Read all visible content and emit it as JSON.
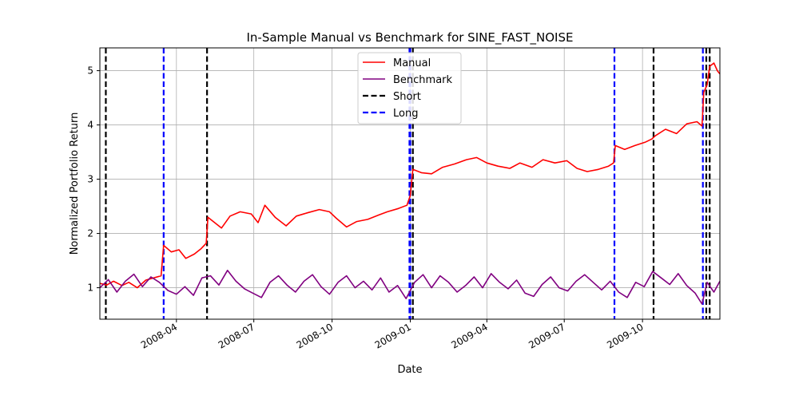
{
  "chart_data": {
    "type": "line",
    "title": "In-Sample Manual vs Benchmark for SINE_FAST_NOISE",
    "xlabel": "Date",
    "ylabel": "Normalized Portfolio Return",
    "xlim": [
      "2008-01-02",
      "2009-12-31"
    ],
    "ylim": [
      0.42,
      5.42
    ],
    "x_ticks": [
      "2008-04",
      "2008-07",
      "2008-10",
      "2009-01",
      "2009-04",
      "2009-07",
      "2009-10"
    ],
    "y_ticks": [
      1,
      2,
      3,
      4,
      5
    ],
    "grid": true,
    "legend_position": "top-center",
    "series": [
      {
        "name": "Manual",
        "color": "#ff0000",
        "style": "solid",
        "points": [
          [
            "2008-01-02",
            1.08
          ],
          [
            "2008-01-10",
            1.05
          ],
          [
            "2008-01-18",
            1.12
          ],
          [
            "2008-01-28",
            1.04
          ],
          [
            "2008-02-05",
            1.1
          ],
          [
            "2008-02-15",
            1.0
          ],
          [
            "2008-02-25",
            1.14
          ],
          [
            "2008-03-05",
            1.18
          ],
          [
            "2008-03-14",
            1.22
          ],
          [
            "2008-03-17",
            1.78
          ],
          [
            "2008-03-26",
            1.66
          ],
          [
            "2008-04-04",
            1.7
          ],
          [
            "2008-04-12",
            1.54
          ],
          [
            "2008-04-22",
            1.62
          ],
          [
            "2008-04-30",
            1.72
          ],
          [
            "2008-05-06",
            1.82
          ],
          [
            "2008-05-08",
            2.3
          ],
          [
            "2008-05-16",
            2.2
          ],
          [
            "2008-05-24",
            2.1
          ],
          [
            "2008-06-03",
            2.32
          ],
          [
            "2008-06-15",
            2.4
          ],
          [
            "2008-06-28",
            2.36
          ],
          [
            "2008-07-06",
            2.2
          ],
          [
            "2008-07-14",
            2.52
          ],
          [
            "2008-07-26",
            2.3
          ],
          [
            "2008-08-08",
            2.14
          ],
          [
            "2008-08-20",
            2.32
          ],
          [
            "2008-09-02",
            2.38
          ],
          [
            "2008-09-16",
            2.44
          ],
          [
            "2008-09-28",
            2.4
          ],
          [
            "2008-10-06",
            2.28
          ],
          [
            "2008-10-18",
            2.12
          ],
          [
            "2008-10-30",
            2.22
          ],
          [
            "2008-11-12",
            2.26
          ],
          [
            "2008-11-25",
            2.34
          ],
          [
            "2008-12-05",
            2.4
          ],
          [
            "2008-12-18",
            2.46
          ],
          [
            "2008-12-28",
            2.52
          ],
          [
            "2009-01-01",
            2.7
          ],
          [
            "2009-01-04",
            3.18
          ],
          [
            "2009-01-14",
            3.12
          ],
          [
            "2009-01-26",
            3.1
          ],
          [
            "2009-02-08",
            3.22
          ],
          [
            "2009-02-22",
            3.28
          ],
          [
            "2009-03-08",
            3.36
          ],
          [
            "2009-03-20",
            3.4
          ],
          [
            "2009-04-01",
            3.3
          ],
          [
            "2009-04-14",
            3.24
          ],
          [
            "2009-04-28",
            3.2
          ],
          [
            "2009-05-10",
            3.3
          ],
          [
            "2009-05-24",
            3.22
          ],
          [
            "2009-06-06",
            3.36
          ],
          [
            "2009-06-20",
            3.3
          ],
          [
            "2009-07-04",
            3.34
          ],
          [
            "2009-07-16",
            3.2
          ],
          [
            "2009-07-28",
            3.14
          ],
          [
            "2009-08-10",
            3.18
          ],
          [
            "2009-08-22",
            3.24
          ],
          [
            "2009-08-28",
            3.3
          ],
          [
            "2009-08-30",
            3.62
          ],
          [
            "2009-09-10",
            3.55
          ],
          [
            "2009-09-22",
            3.62
          ],
          [
            "2009-10-04",
            3.68
          ],
          [
            "2009-10-12",
            3.74
          ],
          [
            "2009-10-16",
            3.8
          ],
          [
            "2009-10-28",
            3.92
          ],
          [
            "2009-11-10",
            3.84
          ],
          [
            "2009-11-22",
            4.02
          ],
          [
            "2009-12-04",
            4.06
          ],
          [
            "2009-12-10",
            3.98
          ],
          [
            "2009-12-12",
            4.6
          ],
          [
            "2009-12-16",
            4.74
          ],
          [
            "2009-12-19",
            5.08
          ],
          [
            "2009-12-24",
            5.14
          ],
          [
            "2009-12-28",
            5.0
          ],
          [
            "2009-12-31",
            4.94
          ]
        ]
      },
      {
        "name": "Benchmark",
        "color": "#800080",
        "style": "solid",
        "points": [
          [
            "2008-01-02",
            1.0
          ],
          [
            "2008-01-12",
            1.15
          ],
          [
            "2008-01-22",
            0.92
          ],
          [
            "2008-02-01",
            1.12
          ],
          [
            "2008-02-11",
            1.25
          ],
          [
            "2008-02-21",
            1.02
          ],
          [
            "2008-03-02",
            1.2
          ],
          [
            "2008-03-12",
            1.1
          ],
          [
            "2008-03-22",
            0.95
          ],
          [
            "2008-04-01",
            0.88
          ],
          [
            "2008-04-11",
            1.02
          ],
          [
            "2008-04-21",
            0.86
          ],
          [
            "2008-05-01",
            1.18
          ],
          [
            "2008-05-11",
            1.22
          ],
          [
            "2008-05-21",
            1.05
          ],
          [
            "2008-05-31",
            1.32
          ],
          [
            "2008-06-10",
            1.12
          ],
          [
            "2008-06-20",
            0.98
          ],
          [
            "2008-06-30",
            0.9
          ],
          [
            "2008-07-10",
            0.82
          ],
          [
            "2008-07-20",
            1.1
          ],
          [
            "2008-07-30",
            1.22
          ],
          [
            "2008-08-09",
            1.05
          ],
          [
            "2008-08-19",
            0.92
          ],
          [
            "2008-08-29",
            1.12
          ],
          [
            "2008-09-08",
            1.24
          ],
          [
            "2008-09-18",
            1.02
          ],
          [
            "2008-09-28",
            0.88
          ],
          [
            "2008-10-08",
            1.1
          ],
          [
            "2008-10-18",
            1.22
          ],
          [
            "2008-10-28",
            1.0
          ],
          [
            "2008-11-07",
            1.12
          ],
          [
            "2008-11-17",
            0.96
          ],
          [
            "2008-11-27",
            1.18
          ],
          [
            "2008-12-07",
            0.92
          ],
          [
            "2008-12-17",
            1.04
          ],
          [
            "2008-12-27",
            0.8
          ],
          [
            "2009-01-06",
            1.1
          ],
          [
            "2009-01-16",
            1.24
          ],
          [
            "2009-01-26",
            1.0
          ],
          [
            "2009-02-05",
            1.22
          ],
          [
            "2009-02-15",
            1.1
          ],
          [
            "2009-02-25",
            0.92
          ],
          [
            "2009-03-07",
            1.04
          ],
          [
            "2009-03-17",
            1.2
          ],
          [
            "2009-03-27",
            1.0
          ],
          [
            "2009-04-06",
            1.26
          ],
          [
            "2009-04-16",
            1.1
          ],
          [
            "2009-04-26",
            0.98
          ],
          [
            "2009-05-06",
            1.14
          ],
          [
            "2009-05-16",
            0.9
          ],
          [
            "2009-05-26",
            0.84
          ],
          [
            "2009-06-05",
            1.06
          ],
          [
            "2009-06-15",
            1.2
          ],
          [
            "2009-06-25",
            1.0
          ],
          [
            "2009-07-05",
            0.94
          ],
          [
            "2009-07-15",
            1.12
          ],
          [
            "2009-07-25",
            1.24
          ],
          [
            "2009-08-04",
            1.1
          ],
          [
            "2009-08-14",
            0.96
          ],
          [
            "2009-08-24",
            1.12
          ],
          [
            "2009-09-03",
            0.92
          ],
          [
            "2009-09-13",
            0.82
          ],
          [
            "2009-09-23",
            1.1
          ],
          [
            "2009-10-03",
            1.02
          ],
          [
            "2009-10-13",
            1.3
          ],
          [
            "2009-10-23",
            1.18
          ],
          [
            "2009-11-02",
            1.06
          ],
          [
            "2009-11-12",
            1.26
          ],
          [
            "2009-11-22",
            1.04
          ],
          [
            "2009-12-02",
            0.9
          ],
          [
            "2009-12-10",
            0.7
          ],
          [
            "2009-12-16",
            1.1
          ],
          [
            "2009-12-24",
            0.92
          ],
          [
            "2009-12-31",
            1.12
          ]
        ]
      }
    ],
    "vlines": [
      {
        "series": "Short",
        "date": "2008-01-09",
        "color": "#000000",
        "style": "dashed"
      },
      {
        "series": "Long",
        "date": "2008-03-17",
        "color": "#0000ff",
        "style": "dashed"
      },
      {
        "series": "Short",
        "date": "2008-05-07",
        "color": "#000000",
        "style": "dashed"
      },
      {
        "series": "Long",
        "date": "2008-12-31",
        "color": "#0000ff",
        "style": "dashed"
      },
      {
        "series": "Long",
        "date": "2009-01-01",
        "color": "#0000ff",
        "style": "dashed"
      },
      {
        "series": "Short",
        "date": "2009-01-04",
        "color": "#000000",
        "style": "dashed"
      },
      {
        "series": "Long",
        "date": "2009-08-29",
        "color": "#0000ff",
        "style": "dashed"
      },
      {
        "series": "Short",
        "date": "2009-10-14",
        "color": "#000000",
        "style": "dashed"
      },
      {
        "series": "Long",
        "date": "2009-12-11",
        "color": "#0000ff",
        "style": "dashed"
      },
      {
        "series": "Short",
        "date": "2009-12-15",
        "color": "#000000",
        "style": "dashed"
      },
      {
        "series": "Short",
        "date": "2009-12-19",
        "color": "#000000",
        "style": "dashed"
      }
    ],
    "legend": [
      {
        "label": "Manual",
        "color": "#ff0000",
        "style": "solid"
      },
      {
        "label": "Benchmark",
        "color": "#800080",
        "style": "solid"
      },
      {
        "label": "Short",
        "color": "#000000",
        "style": "dashed"
      },
      {
        "label": "Long",
        "color": "#0000ff",
        "style": "dashed"
      }
    ]
  }
}
